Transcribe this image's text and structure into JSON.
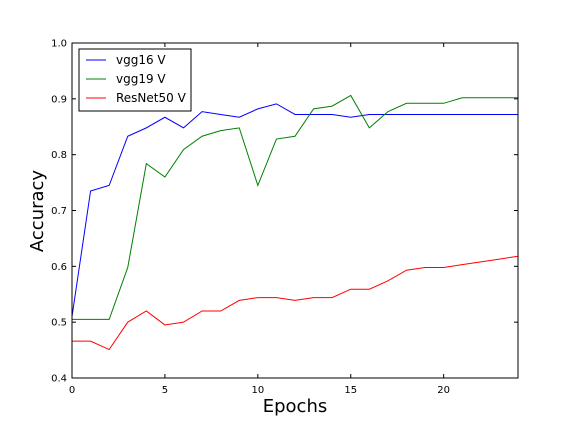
{
  "chart_data": {
    "type": "line",
    "title": "",
    "xlabel": "Epochs",
    "ylabel": "Accuracy",
    "xlim": [
      0,
      24
    ],
    "ylim": [
      0.4,
      1.0
    ],
    "xticks": [
      0,
      5,
      10,
      15,
      20
    ],
    "xtick_labels": [
      "0",
      "5",
      "10",
      "15",
      "20"
    ],
    "yticks": [
      0.4,
      0.5,
      0.6,
      0.7,
      0.8,
      0.9,
      1.0
    ],
    "ytick_labels": [
      "0.4",
      "0.5",
      "0.6",
      "0.7",
      "0.8",
      "0.9",
      "1.0"
    ],
    "grid": false,
    "legend_position": "top-left",
    "x": [
      0,
      1,
      2,
      3,
      4,
      5,
      6,
      7,
      8,
      9,
      10,
      11,
      12,
      13,
      14,
      15,
      16,
      17,
      18,
      19,
      20,
      21,
      22,
      23,
      24
    ],
    "series": [
      {
        "name": "vgg16 V",
        "color": "#0000ff",
        "values": [
          0.51,
          0.735,
          0.745,
          0.833,
          0.848,
          0.867,
          0.848,
          0.877,
          0.872,
          0.867,
          0.882,
          0.891,
          0.872,
          0.872,
          0.872,
          0.867,
          0.872,
          0.872,
          0.872,
          0.872,
          0.872,
          0.872,
          0.872,
          0.872,
          0.872
        ]
      },
      {
        "name": "vgg19 V",
        "color": "#008000",
        "values": [
          0.505,
          0.505,
          0.505,
          0.598,
          0.784,
          0.76,
          0.809,
          0.833,
          0.843,
          0.848,
          0.745,
          0.828,
          0.833,
          0.882,
          0.887,
          0.906,
          0.848,
          0.877,
          0.892,
          0.892,
          0.892,
          0.902,
          0.902,
          0.902,
          0.902
        ]
      },
      {
        "name": "ResNet50 V",
        "color": "#ff0000",
        "values": [
          0.466,
          0.466,
          0.451,
          0.5,
          0.52,
          0.495,
          0.5,
          0.52,
          0.52,
          0.539,
          0.544,
          0.544,
          0.539,
          0.544,
          0.544,
          0.559,
          0.559,
          0.574,
          0.593,
          0.598,
          0.598,
          0.603,
          0.608,
          0.613,
          0.618
        ]
      }
    ]
  }
}
